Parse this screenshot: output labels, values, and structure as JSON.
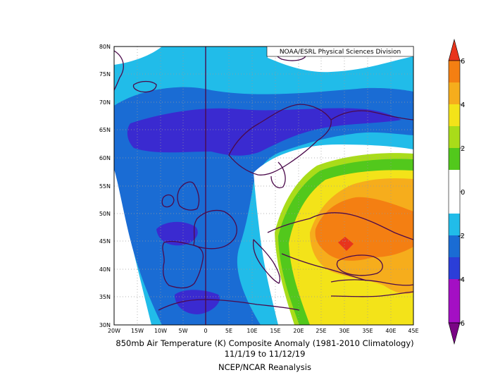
{
  "credit": "NOAA/ESRL Physical Sciences Division",
  "title": {
    "line1": "850mb Air Temperature (K) Composite Anomaly (1981-2010 Climatology)",
    "line2": "11/1/19  to 11/12/19",
    "line3": "NCEP/NCAR Reanalysis"
  },
  "axes": {
    "lat_labels": [
      "80N",
      "75N",
      "70N",
      "65N",
      "60N",
      "55N",
      "50N",
      "45N",
      "40N",
      "35N",
      "30N"
    ],
    "lon_labels": [
      "20W",
      "15W",
      "10W",
      "5W",
      "0",
      "5E",
      "10E",
      "15E",
      "20E",
      "25E",
      "30E",
      "35E",
      "40E",
      "45E"
    ]
  },
  "colorbar": {
    "labels": [
      "6",
      "4",
      "2",
      "0",
      "-2",
      "-4",
      "-6"
    ],
    "colors": [
      "#e8341c",
      "#f47f12",
      "#f6ad1c",
      "#f3e319",
      "#a9dc19",
      "#52c81c",
      "#ffffff",
      "#21bce9",
      "#1a6cd4",
      "#2b3ed8",
      "#3a18c6",
      "#a40fc4",
      "#7a0585"
    ]
  },
  "shading_colors": {
    "cyan": "#21bce9",
    "mid_blue": "#1a6cd4",
    "deep_blue": "#3a2ad0",
    "white": "#ffffff",
    "light_green": "#a9dc19",
    "green": "#52c81c",
    "yellow": "#f3e319",
    "light_orange": "#f6ad1c",
    "orange": "#f47f12",
    "red": "#e8341c",
    "coast": "#4b0a4b"
  }
}
